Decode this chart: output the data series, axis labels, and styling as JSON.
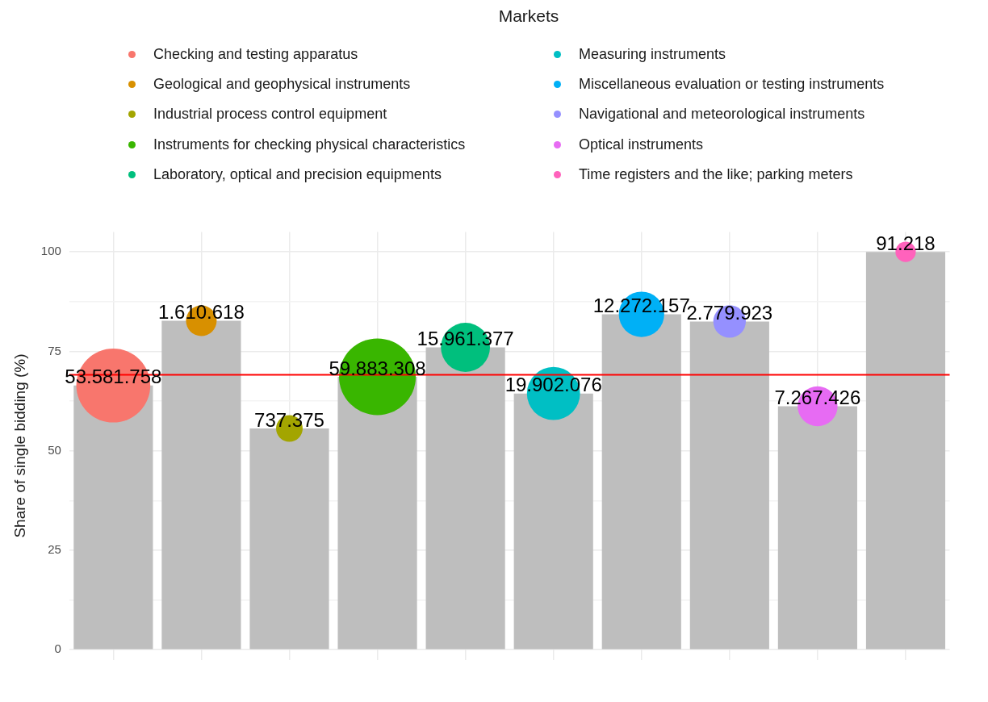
{
  "chart_data": {
    "type": "bar",
    "ylabel": "Share of single bidding (%)",
    "legend_title": "Markets",
    "legend": "top",
    "categories": [
      null,
      null,
      null,
      null,
      null,
      null,
      null,
      null,
      null,
      null
    ],
    "ylim": [
      -2.5,
      105
    ],
    "yticks": [
      0,
      {
        "value": 12.5,
        "label": null
      },
      25,
      {
        "value": 37.5,
        "label": null
      },
      50,
      {
        "value": 62.5,
        "label": null
      },
      75,
      {
        "value": 87.5,
        "label": null
      },
      100
    ],
    "grid": true,
    "tick_labels": "y",
    "annotations": [
      "53.581.758",
      "1.610.618",
      "737.375",
      "59.883.308",
      "15.961.377",
      "19.902.076",
      "12.272.157",
      "2.779.923",
      "7.267.426",
      "91.218"
    ],
    "ref_lines": [
      {
        "axis": "y",
        "value": 69.1,
        "color": "#ff0000"
      }
    ],
    "series": [
      {
        "color": "#bebebe",
        "values": [
          66.4,
          82.7,
          55.6,
          68.6,
          76.0,
          64.4,
          84.3,
          82.5,
          61.2,
          100
        ]
      },
      {
        "type": "bubble",
        "name": "Checking and testing apparatus",
        "color": "#f8766d",
        "values": [
          66.4,
          null,
          null,
          null,
          null,
          null,
          null,
          null,
          null,
          null
        ],
        "sizes": [
          0.93,
          null,
          null,
          null,
          null,
          null,
          null,
          null,
          null,
          null
        ]
      },
      {
        "type": "bubble",
        "name": "Geological and geophysical instruments",
        "color": "#d89000",
        "values": [
          null,
          82.7,
          null,
          null,
          null,
          null,
          null,
          null,
          null,
          null
        ],
        "sizes": [
          null,
          0.16,
          null,
          null,
          null,
          null,
          null,
          null,
          null,
          null
        ]
      },
      {
        "type": "bubble",
        "name": "Industrial process control equipment",
        "color": "#a3a500",
        "values": [
          null,
          null,
          55.6,
          null,
          null,
          null,
          null,
          null,
          null,
          null
        ],
        "sizes": [
          null,
          null,
          0.12,
          null,
          null,
          null,
          null,
          null,
          null,
          null
        ]
      },
      {
        "type": "bubble",
        "name": "Instruments for checking physical characteristics",
        "color": "#39b600",
        "values": [
          null,
          null,
          null,
          68.6,
          null,
          null,
          null,
          null,
          null,
          null
        ],
        "sizes": [
          null,
          null,
          null,
          1,
          null,
          null,
          null,
          null,
          null,
          null
        ]
      },
      {
        "type": "bubble",
        "name": "Laboratory, optical and precision equipments",
        "color": "#00bf7d",
        "values": [
          null,
          null,
          null,
          null,
          76.0,
          null,
          null,
          null,
          null,
          null
        ],
        "sizes": [
          null,
          null,
          null,
          null,
          0.41,
          null,
          null,
          null,
          null,
          null
        ]
      },
      {
        "type": "bubble",
        "name": "Measuring instruments",
        "color": "#00bfc4",
        "values": [
          null,
          null,
          null,
          null,
          null,
          64.4,
          null,
          null,
          null,
          null
        ],
        "sizes": [
          null,
          null,
          null,
          null,
          null,
          0.48,
          null,
          null,
          null,
          null
        ]
      },
      {
        "type": "bubble",
        "name": "Miscellaneous evaluation or testing instruments",
        "color": "#00b0f6",
        "values": [
          null,
          null,
          null,
          null,
          null,
          null,
          84.3,
          null,
          null,
          null
        ],
        "sizes": [
          null,
          null,
          null,
          null,
          null,
          null,
          0.35,
          null,
          null,
          null
        ]
      },
      {
        "type": "bubble",
        "name": "Navigational and meteorological instruments",
        "color": "#9590ff",
        "values": [
          null,
          null,
          null,
          null,
          null,
          null,
          null,
          82.5,
          null,
          null
        ],
        "sizes": [
          null,
          null,
          null,
          null,
          null,
          null,
          null,
          0.18,
          null,
          null
        ]
      },
      {
        "type": "bubble",
        "name": "Optical instruments",
        "color": "#e76bf3",
        "values": [
          null,
          null,
          null,
          null,
          null,
          null,
          null,
          null,
          61.2,
          null
        ],
        "sizes": [
          null,
          null,
          null,
          null,
          null,
          null,
          null,
          null,
          0.27,
          null
        ]
      },
      {
        "type": "bubble",
        "name": "Time registers and the like; parking meters",
        "color": "#ff62bc",
        "values": [
          null,
          null,
          null,
          null,
          null,
          null,
          null,
          null,
          null,
          100
        ],
        "sizes": [
          null,
          null,
          null,
          null,
          null,
          null,
          null,
          null,
          null,
          0.07
        ]
      }
    ]
  }
}
